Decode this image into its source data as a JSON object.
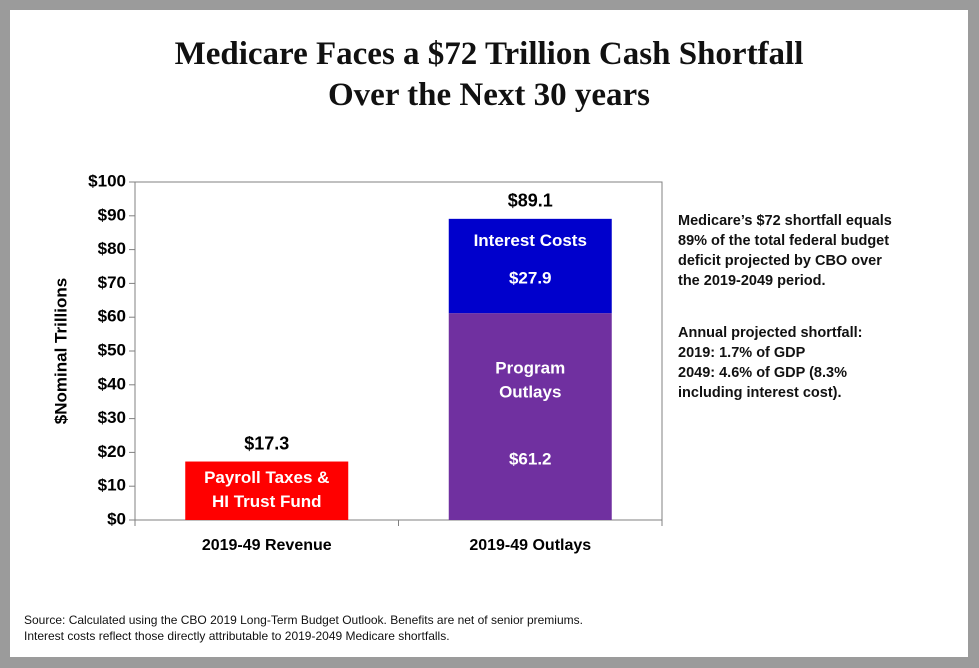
{
  "title_lines": [
    "Medicare Faces a $72 Trillion Cash Shortfall",
    "Over the Next 30 years"
  ],
  "chart_data": {
    "type": "bar",
    "stacked": true,
    "ylabel": "$Nominal Trillions",
    "xlabel": "",
    "ylim": [
      0,
      100
    ],
    "yticks": [
      "$0",
      "$10",
      "$20",
      "$30",
      "$40",
      "$50",
      "$60",
      "$70",
      "$80",
      "$90",
      "$100"
    ],
    "grid": false,
    "categories": [
      "2019-49 Revenue",
      "2019-49 Outlays"
    ],
    "totals": [
      "$17.3",
      "$89.1"
    ],
    "segments": [
      {
        "category": "2019-49 Revenue",
        "value": 17.3,
        "color": "#ff0000",
        "label_lines": [
          "Payroll Taxes &",
          "HI Trust Fund"
        ],
        "value_label": ""
      },
      {
        "category": "2019-49 Outlays",
        "value": 61.2,
        "color": "#7030a0",
        "label_lines": [
          "Program",
          "Outlays"
        ],
        "value_label": "$61.2"
      },
      {
        "category": "2019-49 Outlays",
        "value": 27.9,
        "color": "#0000cc",
        "label_lines": [
          "Interest Costs"
        ],
        "value_label": "$27.9"
      }
    ]
  },
  "notes": {
    "paragraph1": [
      "Medicare’s $72 shortfall equals",
      "89% of the total federal budget",
      "deficit projected by CBO over",
      "the 2019-2049 period."
    ],
    "paragraph2": [
      "Annual projected shortfall:",
      "2019: 1.7% of GDP",
      "2049: 4.6% of GDP (8.3%",
      "including interest cost)."
    ]
  },
  "source": [
    "Source: Calculated using the CBO 2019 Long-Term Budget Outlook. Benefits are net of senior premiums.",
    "Interest costs reflect those directly attributable to 2019-2049 Medicare shortfalls."
  ]
}
